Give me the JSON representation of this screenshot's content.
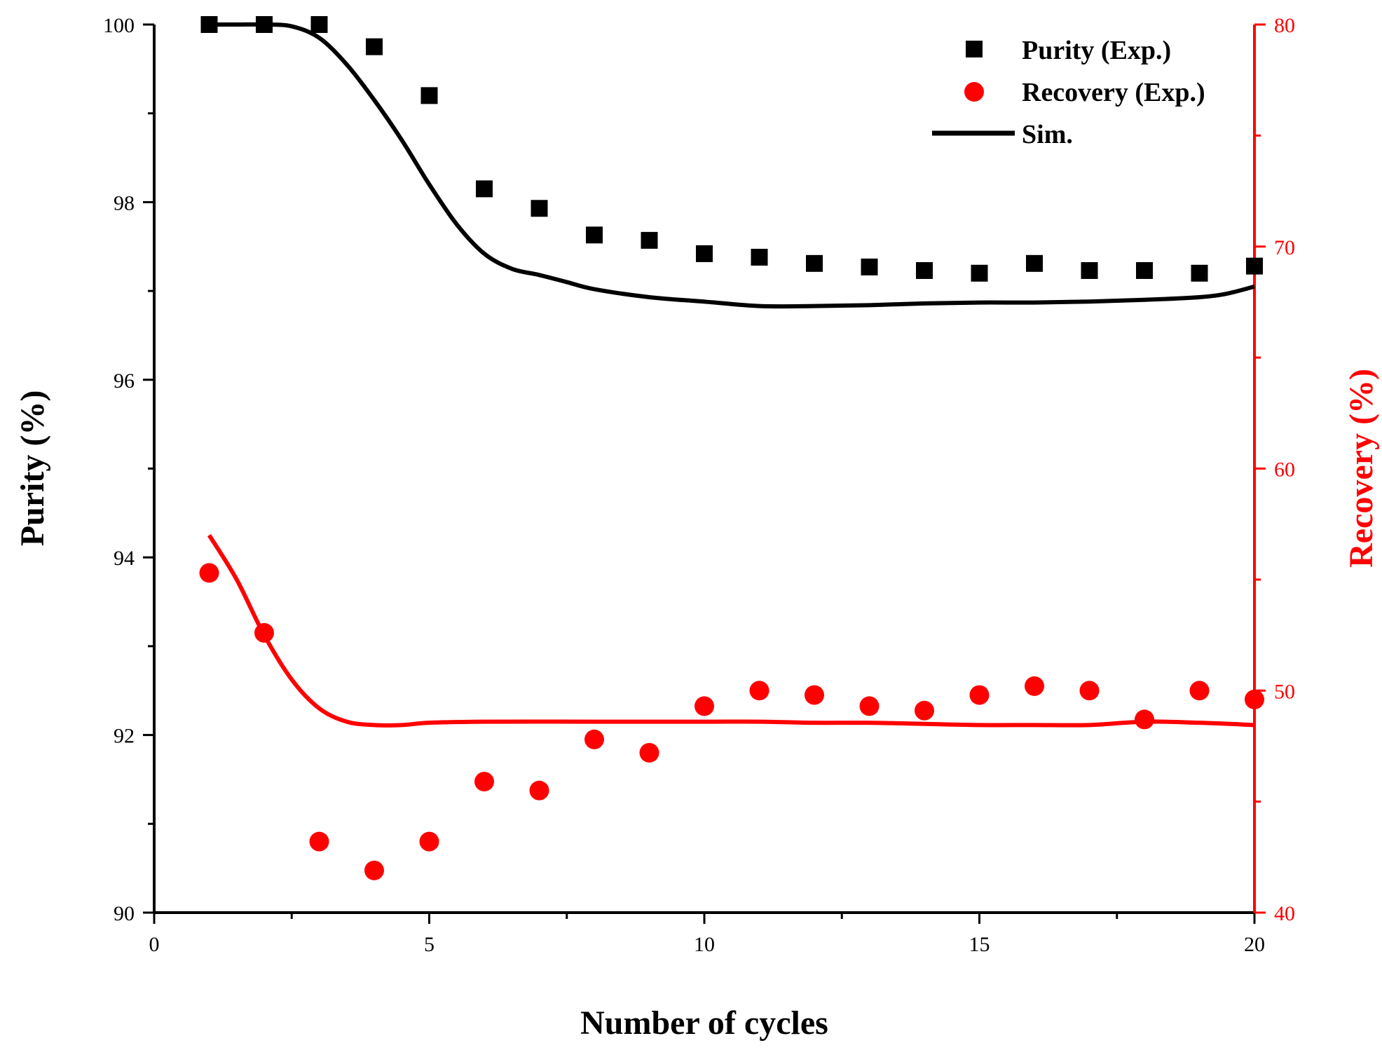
{
  "chart_data": {
    "type": "scatter",
    "xlabel": "Number of cycles",
    "ylabel_left": "Purity (%)",
    "ylabel_right": "Recovery (%)",
    "xlim": [
      0,
      20
    ],
    "xticks": [
      "0",
      "5",
      "10",
      "15",
      "20"
    ],
    "xtick_values": [
      0,
      5,
      10,
      15,
      20
    ],
    "ylim_left": [
      90,
      100
    ],
    "yticks_left": [
      "90",
      "92",
      "94",
      "96",
      "98",
      "100"
    ],
    "ytick_values_left": [
      90,
      92,
      94,
      96,
      98,
      100
    ],
    "ylim_right": [
      40,
      80
    ],
    "yticks_right": [
      "40",
      "50",
      "60",
      "70",
      "80"
    ],
    "ytick_values_right": [
      40,
      50,
      60,
      70,
      80
    ],
    "colors": {
      "purity": "#000000",
      "recovery": "#ff0000"
    },
    "legend": {
      "position": "top-right",
      "entries": [
        "Purity (Exp.)",
        "Recovery (Exp.)",
        "Sim."
      ]
    },
    "series": [
      {
        "name": "Purity (Exp.)",
        "axis": "left",
        "marker": "square",
        "x": [
          1,
          2,
          3,
          4,
          5,
          6,
          7,
          8,
          9,
          10,
          11,
          12,
          13,
          14,
          15,
          16,
          17,
          18,
          19,
          20
        ],
        "values": [
          100.0,
          100.0,
          100.0,
          99.75,
          99.2,
          98.15,
          97.93,
          97.63,
          97.57,
          97.42,
          97.38,
          97.31,
          97.27,
          97.23,
          97.2,
          97.31,
          97.23,
          97.23,
          97.2,
          97.28
        ]
      },
      {
        "name": "Recovery (Exp.)",
        "axis": "right",
        "marker": "circle",
        "x": [
          1,
          2,
          3,
          4,
          5,
          6,
          7,
          8,
          9,
          10,
          11,
          12,
          13,
          14,
          15,
          16,
          17,
          18,
          19,
          20
        ],
        "values": [
          55.3,
          52.6,
          43.2,
          41.9,
          43.2,
          45.9,
          45.5,
          47.8,
          47.2,
          49.3,
          50.0,
          49.8,
          49.3,
          49.1,
          49.8,
          50.2,
          50.0,
          48.7,
          50.0,
          49.6
        ]
      },
      {
        "name": "Sim. (Purity)",
        "axis": "left",
        "marker": "line",
        "x": [
          1,
          1.5,
          2,
          2.5,
          3,
          3.5,
          4,
          4.5,
          5,
          5.5,
          6,
          6.5,
          7,
          7.5,
          8,
          9,
          10,
          11,
          12,
          13,
          14,
          15,
          16,
          17,
          18,
          19,
          19.5,
          20
        ],
        "values": [
          100,
          100,
          100,
          99.98,
          99.85,
          99.55,
          99.15,
          98.7,
          98.2,
          97.75,
          97.42,
          97.25,
          97.18,
          97.1,
          97.02,
          96.93,
          96.88,
          96.83,
          96.83,
          96.84,
          96.86,
          96.87,
          96.87,
          96.88,
          96.9,
          96.93,
          96.97,
          97.05
        ]
      },
      {
        "name": "Sim. (Recovery)",
        "axis": "right",
        "marker": "line",
        "x": [
          1,
          1.5,
          2,
          2.5,
          3,
          3.5,
          4,
          4.5,
          5,
          6,
          8,
          10,
          11,
          12,
          13,
          14,
          15,
          16,
          17,
          18,
          19,
          20
        ],
        "values": [
          57,
          55,
          52.5,
          50.5,
          49.2,
          48.6,
          48.45,
          48.45,
          48.55,
          48.6,
          48.6,
          48.6,
          48.6,
          48.55,
          48.55,
          48.5,
          48.45,
          48.45,
          48.45,
          48.6,
          48.55,
          48.45
        ]
      }
    ]
  }
}
